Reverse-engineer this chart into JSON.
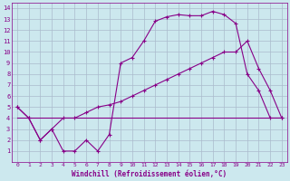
{
  "background_color": "#cce8ee",
  "grid_color": "#aabbcc",
  "line_color": "#880088",
  "marker": "+",
  "xlabel": "Windchill (Refroidissement éolien,°C)",
  "xlabel_color": "#880088",
  "xlim": [
    -0.5,
    23.5
  ],
  "ylim": [
    0,
    14.5
  ],
  "xticks": [
    0,
    1,
    2,
    3,
    4,
    5,
    6,
    7,
    8,
    9,
    10,
    11,
    12,
    13,
    14,
    15,
    16,
    17,
    18,
    19,
    20,
    21,
    22,
    23
  ],
  "yticks": [
    1,
    2,
    3,
    4,
    5,
    6,
    7,
    8,
    9,
    10,
    11,
    12,
    13,
    14
  ],
  "series1_x": [
    0,
    1,
    2,
    3,
    4,
    5,
    6,
    7,
    8,
    9,
    10,
    11,
    12,
    13,
    14,
    15,
    16,
    17,
    18,
    19,
    20,
    21,
    22,
    23
  ],
  "series1_y": [
    5,
    4,
    2,
    3,
    1,
    1,
    2,
    1,
    2.5,
    9,
    9.5,
    11,
    12.8,
    13.2,
    13.4,
    13.3,
    13.3,
    13.7,
    13.4,
    12.6,
    8,
    6.5,
    4,
    4
  ],
  "series2_x": [
    0,
    1,
    2,
    3,
    4,
    5,
    6,
    7,
    8,
    9,
    10,
    11,
    12,
    13,
    14,
    15,
    16,
    17,
    18,
    19,
    20,
    21,
    22,
    23
  ],
  "series2_y": [
    5,
    4,
    2,
    3,
    4,
    4,
    4.5,
    5,
    5.2,
    5.5,
    6,
    6.5,
    7,
    7.5,
    8,
    8.5,
    9,
    9.5,
    10,
    10,
    11,
    8.5,
    6.5,
    4
  ],
  "series3_x": [
    0,
    23
  ],
  "series3_y": [
    4,
    4
  ]
}
